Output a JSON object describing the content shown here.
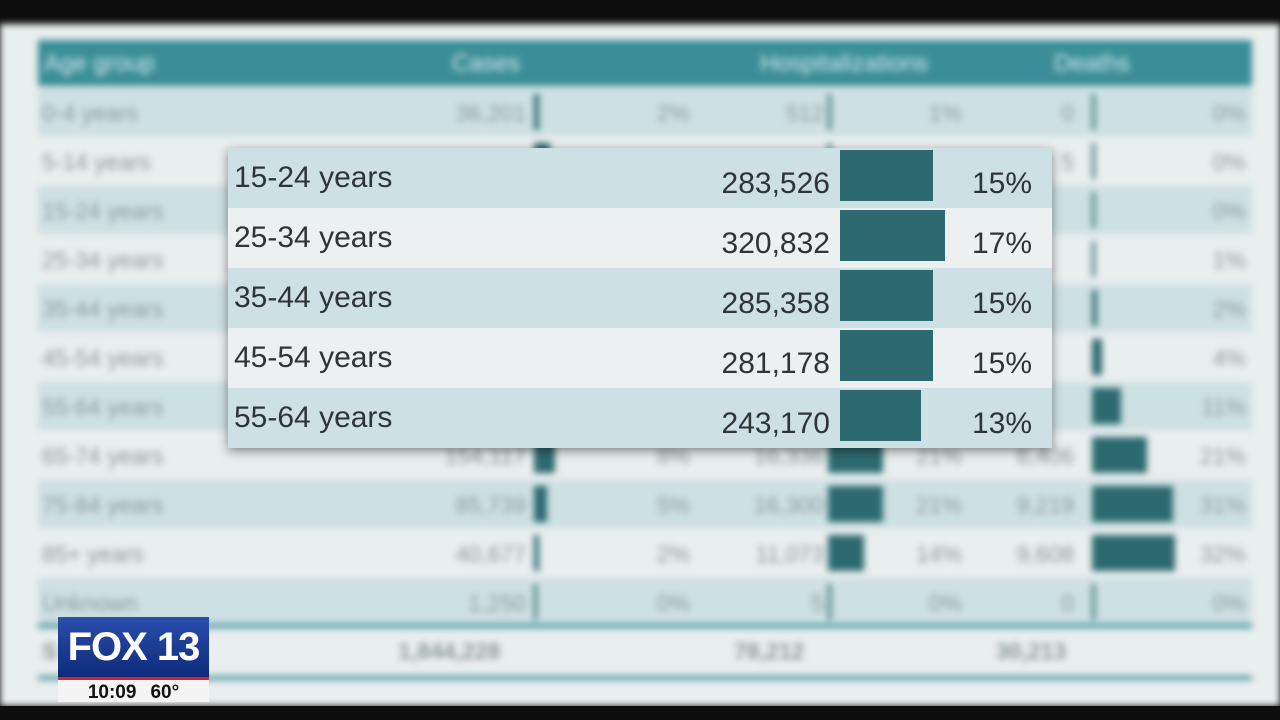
{
  "background_table": {
    "header": {
      "age": "Age group",
      "cases": "Cases",
      "hospitalizations": "Hospitalizations",
      "deaths": "Deaths"
    },
    "rows": [
      {
        "age": "0-4 years",
        "cases": "36,201",
        "cases_pct": "2%",
        "hosp": "512",
        "hosp_pct": "1%",
        "deaths": "0",
        "deaths_pct": "0%",
        "cases_share": 0.02,
        "hosp_share": 0.01,
        "deaths_share": 0.0
      },
      {
        "age": "5-14 years",
        "cases": "",
        "cases_pct": "",
        "hosp": "",
        "hosp_pct": "",
        "deaths": "5",
        "deaths_pct": "0%",
        "cases_share": 0.06,
        "hosp_share": 0.0,
        "deaths_share": 0.0
      },
      {
        "age": "15-24 years",
        "cases": "",
        "cases_pct": "",
        "hosp": "",
        "hosp_pct": "",
        "deaths": "",
        "deaths_pct": "0%",
        "cases_share": 0.0,
        "hosp_share": 0.0,
        "deaths_share": 0.0
      },
      {
        "age": "25-34 years",
        "cases": "",
        "cases_pct": "",
        "hosp": "",
        "hosp_pct": "",
        "deaths": "",
        "deaths_pct": "1%",
        "cases_share": 0.0,
        "hosp_share": 0.0,
        "deaths_share": 0.01
      },
      {
        "age": "35-44 years",
        "cases": "",
        "cases_pct": "",
        "hosp": "",
        "hosp_pct": "",
        "deaths": "",
        "deaths_pct": "2%",
        "cases_share": 0.0,
        "hosp_share": 0.0,
        "deaths_share": 0.02
      },
      {
        "age": "45-54 years",
        "cases": "",
        "cases_pct": "",
        "hosp": "",
        "hosp_pct": "",
        "deaths": "",
        "deaths_pct": "4%",
        "cases_share": 0.0,
        "hosp_share": 0.0,
        "deaths_share": 0.04
      },
      {
        "age": "55-64 years",
        "cases": "",
        "cases_pct": "",
        "hosp": "",
        "hosp_pct": "",
        "deaths": "",
        "deaths_pct": "11%",
        "cases_share": 0.0,
        "hosp_share": 0.0,
        "deaths_share": 0.11
      },
      {
        "age": "65-74 years",
        "cases": "154,117",
        "cases_pct": "8%",
        "hosp": "16,336",
        "hosp_pct": "21%",
        "deaths": "6,406",
        "deaths_pct": "21%",
        "cases_share": 0.08,
        "hosp_share": 0.21,
        "deaths_share": 0.21
      },
      {
        "age": "75-84 years",
        "cases": "85,739",
        "cases_pct": "5%",
        "hosp": "16,300",
        "hosp_pct": "21%",
        "deaths": "9,219",
        "deaths_pct": "31%",
        "cases_share": 0.05,
        "hosp_share": 0.21,
        "deaths_share": 0.31
      },
      {
        "age": "85+ years",
        "cases": "40,677",
        "cases_pct": "2%",
        "hosp": "11,073",
        "hosp_pct": "14%",
        "deaths": "9,608",
        "deaths_pct": "32%",
        "cases_share": 0.02,
        "hosp_share": 0.14,
        "deaths_share": 0.32
      },
      {
        "age": "Unknown",
        "cases": "1,250",
        "cases_pct": "0%",
        "hosp": "5",
        "hosp_pct": "0%",
        "deaths": "0",
        "deaths_pct": "0%",
        "cases_share": 0.0,
        "hosp_share": 0.0,
        "deaths_share": 0.0
      }
    ],
    "total": {
      "label": "S",
      "cases": "1,844,228",
      "hosp": "78,212",
      "deaths": "30,213"
    }
  },
  "zoom_panel": {
    "rows": [
      {
        "age": "15-24 years",
        "cases": "283,526",
        "pct": "15%",
        "share": 0.15
      },
      {
        "age": "25-34 years",
        "cases": "320,832",
        "pct": "17%",
        "share": 0.17
      },
      {
        "age": "35-44 years",
        "cases": "285,358",
        "pct": "15%",
        "share": 0.15
      },
      {
        "age": "45-54 years",
        "cases": "281,178",
        "pct": "15%",
        "share": 0.15
      },
      {
        "age": "55-64 years",
        "cases": "243,170",
        "pct": "13%",
        "share": 0.13
      }
    ]
  },
  "bug": {
    "logo": "FOX 13",
    "time": "10:09",
    "temp": "60°"
  },
  "colors": {
    "header": "#3b8e97",
    "bar": "#2c6a6f",
    "row_alt": "#cde0e3",
    "logo_blue": "#1b3d95"
  }
}
